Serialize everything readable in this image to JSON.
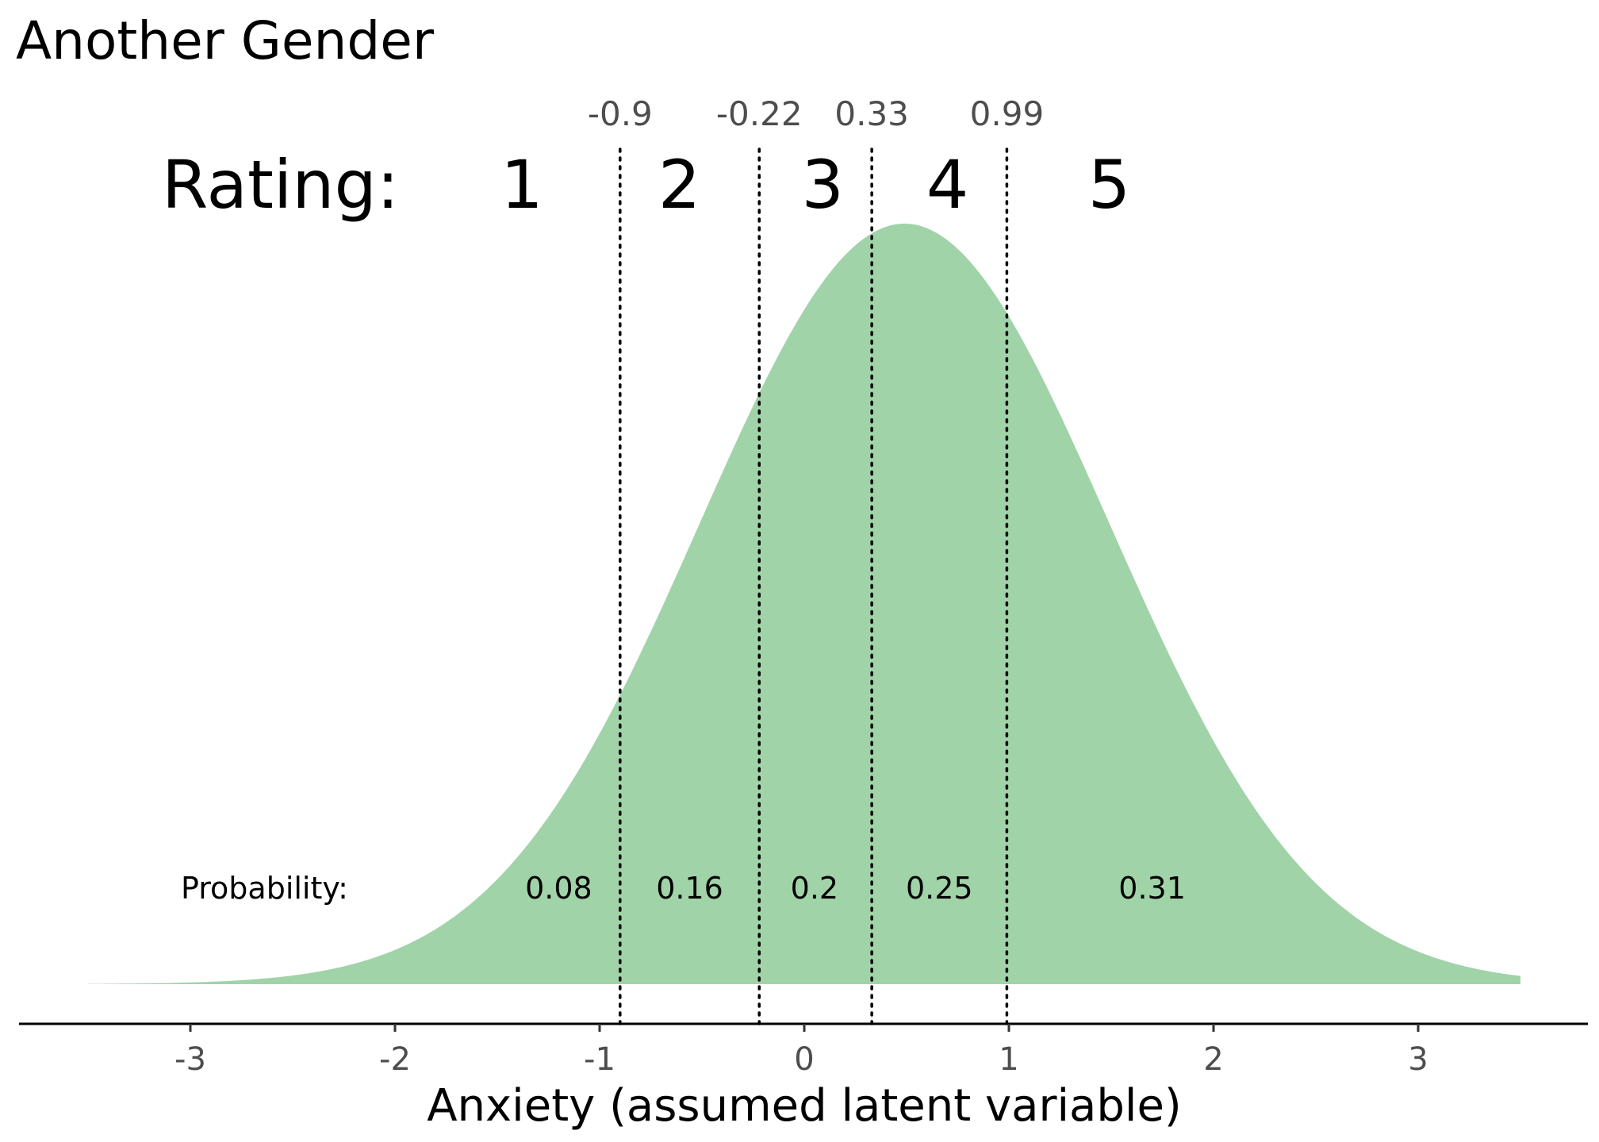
{
  "chart_data": {
    "type": "area",
    "title": "Another Gender",
    "xlabel": "Anxiety (assumed latent variable)",
    "ylabel": "",
    "xlim": [
      -3.5,
      3.5
    ],
    "x_ticks": [
      -3,
      -2,
      -1,
      0,
      1,
      2,
      3
    ],
    "x_tick_labels": [
      "-3",
      "-2",
      "-1",
      "0",
      "1",
      "2",
      "3"
    ],
    "distribution": {
      "kind": "normal",
      "mean": 0.49,
      "sd": 1.0
    },
    "thresholds": [
      -0.9,
      -0.22,
      0.33,
      0.99
    ],
    "threshold_labels": [
      "-0.9",
      "-0.22",
      "0.33",
      "0.99"
    ],
    "rating_prefix": "Rating:",
    "ratings": [
      "1",
      "2",
      "3",
      "4",
      "5"
    ],
    "probability_prefix": "Probability:",
    "probabilities": [
      0.08,
      0.16,
      0.2,
      0.25,
      0.31
    ],
    "probability_labels": [
      "0.08",
      "0.16",
      "0.2",
      "0.25",
      "0.31"
    ],
    "fill_color": "#a1d3a8",
    "threshold_line_color": "#000000",
    "grid": false,
    "legend": "none"
  }
}
